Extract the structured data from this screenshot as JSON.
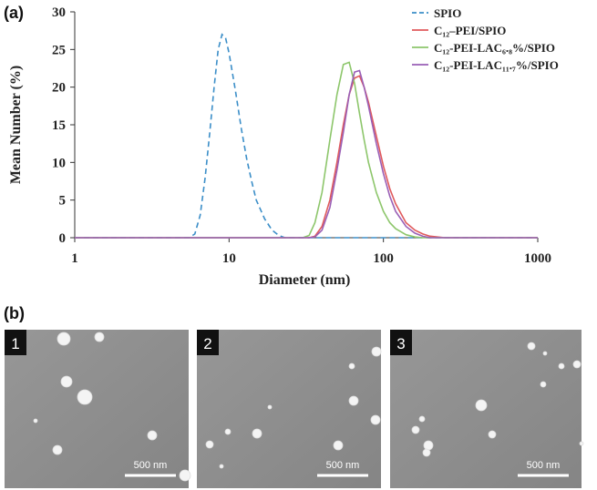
{
  "chart_data": {
    "type": "line",
    "panel_label": "(a)",
    "x_label": "Diameter (nm)",
    "y_label": "Mean Number (%)",
    "log_x": true,
    "grid": false,
    "legend": "upper right",
    "xlim": [
      1,
      1000
    ],
    "xticks": [
      1,
      10,
      100,
      1000
    ],
    "ylim": [
      0,
      30
    ],
    "yticks": [
      0,
      5,
      10,
      15,
      20,
      25,
      30
    ],
    "x": [
      1,
      5.5,
      6,
      6.5,
      7,
      7.5,
      8,
      8.5,
      9,
      9.5,
      10,
      11,
      12,
      13,
      14,
      15,
      17,
      19,
      21,
      23,
      30,
      33,
      36,
      40,
      45,
      50,
      55,
      60,
      65,
      70,
      75,
      80,
      90,
      100,
      110,
      120,
      140,
      160,
      180,
      200,
      250,
      300,
      1000
    ],
    "series": [
      {
        "name": "SPIO",
        "color": "#3b8ec8",
        "dashed": true,
        "values": [
          0,
          0,
          0.5,
          3,
          8,
          14,
          20,
          25,
          27,
          26.5,
          24.5,
          19.5,
          14.5,
          10.5,
          7.5,
          5,
          2.5,
          1,
          0.3,
          0,
          0,
          0,
          0,
          0,
          0,
          0,
          0,
          0,
          0,
          0,
          0,
          0,
          0,
          0,
          0,
          0,
          0,
          0,
          0,
          0,
          0,
          0,
          0
        ]
      },
      {
        "name": "C₁₂–PEI/SPIO",
        "color": "#e05a5c",
        "dashed": false,
        "values": [
          0,
          0,
          0,
          0,
          0,
          0,
          0,
          0,
          0,
          0,
          0,
          0,
          0,
          0,
          0,
          0,
          0,
          0,
          0,
          0,
          0,
          0,
          0.2,
          1.5,
          5,
          10,
          15,
          19,
          21.2,
          21.5,
          20,
          18,
          13.5,
          9.5,
          6.5,
          4.5,
          2,
          1,
          0.5,
          0.2,
          0,
          0,
          0
        ]
      },
      {
        "name": "C₁₂-PEI-LAC₆.₈%/SPIO",
        "color": "#8dc66b",
        "dashed": false,
        "values": [
          0,
          0,
          0,
          0,
          0,
          0,
          0,
          0,
          0,
          0,
          0,
          0,
          0,
          0,
          0,
          0,
          0,
          0,
          0,
          0,
          0,
          0.3,
          2,
          6,
          13,
          19,
          23,
          23.3,
          20.5,
          16.5,
          13,
          10,
          6,
          3.5,
          2,
          1.2,
          0.4,
          0.1,
          0,
          0,
          0,
          0,
          0
        ]
      },
      {
        "name": "C₁₂-PEI-LAC₁₁.₇%/SPIO",
        "color": "#9a5fb6",
        "dashed": false,
        "values": [
          0,
          0,
          0,
          0,
          0,
          0,
          0,
          0,
          0,
          0,
          0,
          0,
          0,
          0,
          0,
          0,
          0,
          0,
          0,
          0,
          0,
          0,
          0.1,
          1,
          4,
          9,
          14,
          19,
          22,
          22.2,
          20,
          17.5,
          12.5,
          8.5,
          5.5,
          3.5,
          1.5,
          0.6,
          0.2,
          0,
          0,
          0,
          0
        ]
      }
    ]
  },
  "figure": {
    "panel_label": "(b)",
    "images": [
      {
        "label": "1",
        "scale_bar": "500 nm"
      },
      {
        "label": "2",
        "scale_bar": "500 nm"
      },
      {
        "label": "3",
        "scale_bar": "500 nm"
      }
    ]
  }
}
